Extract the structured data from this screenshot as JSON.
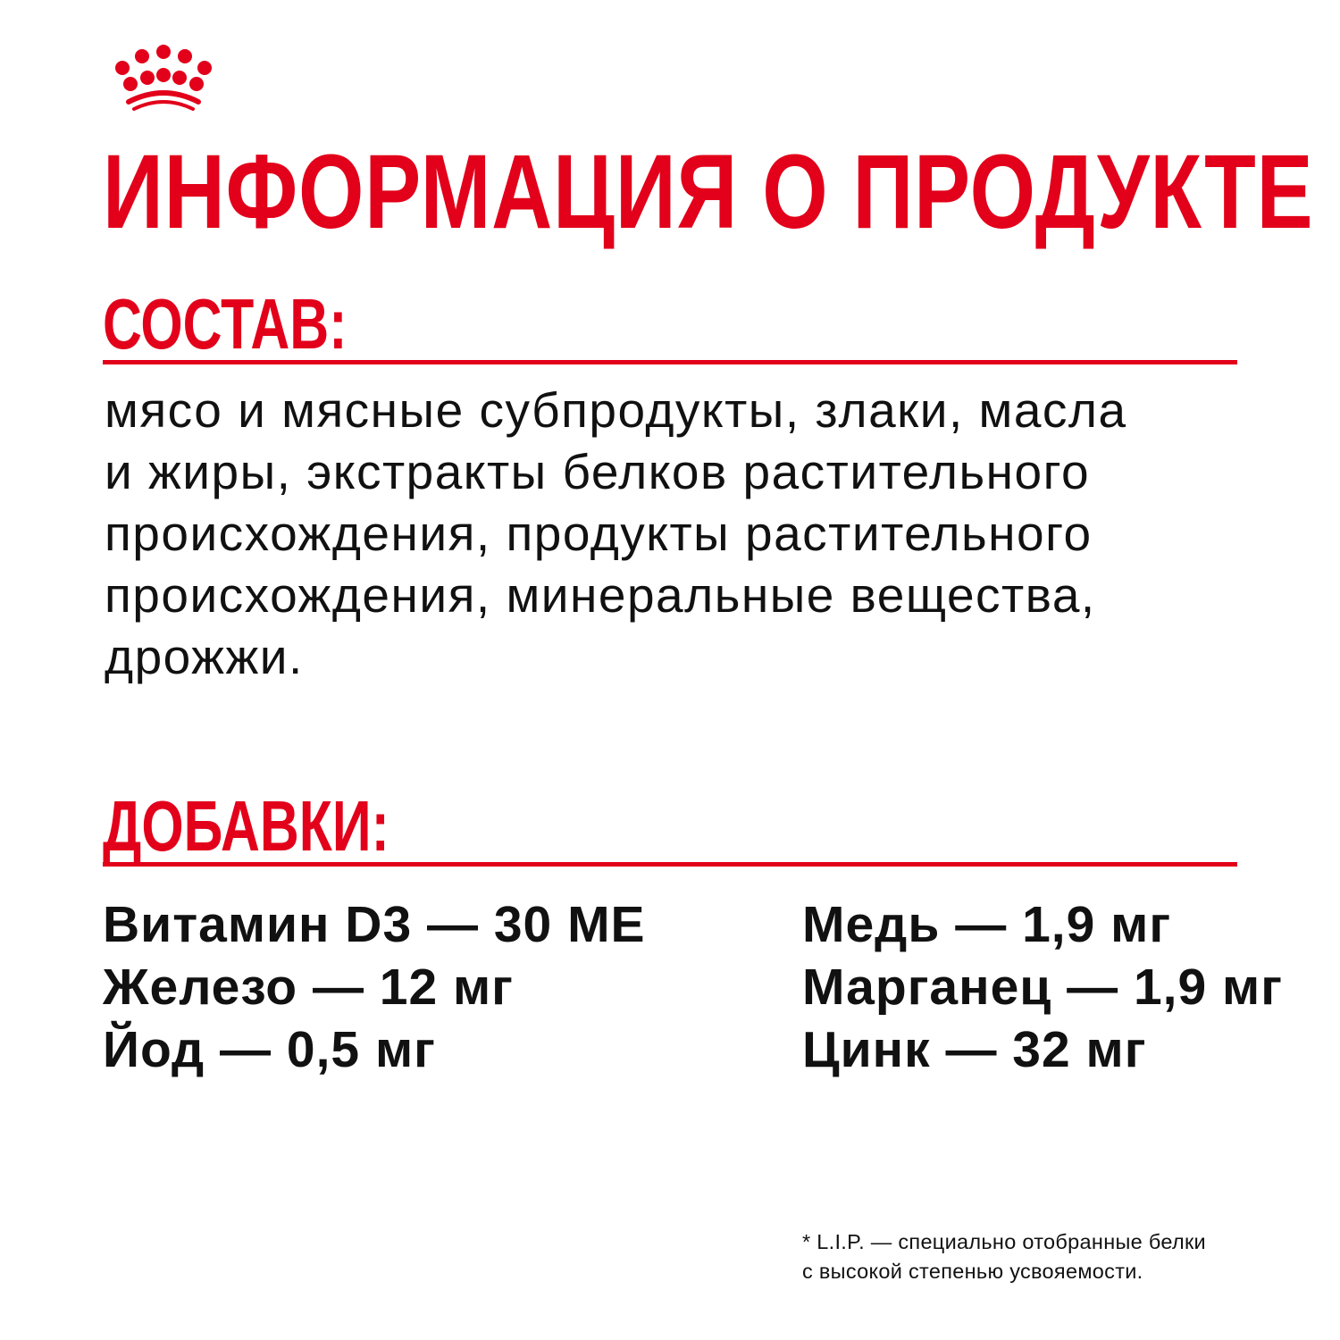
{
  "brand_color": "#e2001a",
  "logo": {
    "icon": "crown-icon"
  },
  "title": "ИНФОРМАЦИЯ О ПРОДУКТЕ",
  "composition": {
    "heading": "СОСТАВ:",
    "lines": [
      "мясо и мясные субпродукты, злаки, масла",
      "и жиры, экстракты белков растительного",
      "происхождения, продукты растительного",
      "происхождения, минеральные вещества,",
      "дрожжи."
    ]
  },
  "additives": {
    "heading": "ДОБАВКИ:",
    "left": [
      "Витамин D3 — 30 МЕ",
      "Железо — 12 мг",
      "Йод — 0,5 мг"
    ],
    "right": [
      "Медь — 1,9 мг",
      "Марганец — 1,9 мг",
      "Цинк — 32 мг"
    ]
  },
  "footnote": {
    "lines": [
      "* L.I.P. — специально отобранные белки",
      "с высокой степенью усвояемости."
    ]
  }
}
